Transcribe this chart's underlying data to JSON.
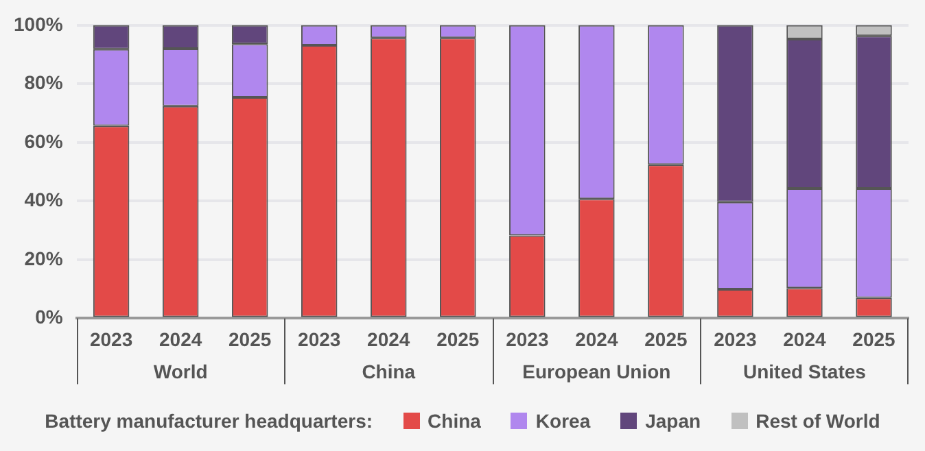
{
  "chart_data": {
    "type": "bar",
    "stacked": true,
    "legend_title": "Battery manufacturer headquarters:",
    "legend": "bottom",
    "grid": "y",
    "categories": [
      "2023",
      "2024",
      "2025",
      "2023",
      "2024",
      "2025",
      "2023",
      "2024",
      "2025",
      "2023",
      "2024",
      "2025"
    ],
    "annotations": [
      "World",
      "China",
      "European Union",
      "United States"
    ],
    "ylim": [
      0,
      100
    ],
    "yticks": [
      {
        "value": 0,
        "label": "0%"
      },
      {
        "value": 20,
        "label": "20%"
      },
      {
        "value": 40,
        "label": "40%"
      },
      {
        "value": 60,
        "label": "60%"
      },
      {
        "value": 80,
        "label": "80%"
      },
      {
        "value": 100,
        "label": "100%"
      }
    ],
    "series": [
      {
        "name": "China",
        "color": "#e34a48",
        "values": [
          65.7,
          72.4,
          75.4,
          93.2,
          95.7,
          95.7,
          28.3,
          40.7,
          52.4,
          9.9,
          10.3,
          7.0
        ]
      },
      {
        "name": "Korea",
        "color": "#b087ee",
        "values": [
          26.1,
          19.6,
          18.2,
          6.8,
          4.3,
          4.3,
          71.7,
          59.3,
          47.6,
          29.8,
          34.0,
          37.3
        ]
      },
      {
        "name": "Japan",
        "color": "#61467c",
        "values": [
          8.2,
          8.0,
          6.4,
          null,
          null,
          null,
          null,
          null,
          null,
          60.3,
          51.0,
          52.1
        ]
      },
      {
        "name": "Rest of World",
        "color": "#c0c0c0",
        "values": [
          null,
          null,
          null,
          null,
          null,
          null,
          null,
          null,
          null,
          null,
          4.7,
          3.6
        ]
      }
    ]
  }
}
